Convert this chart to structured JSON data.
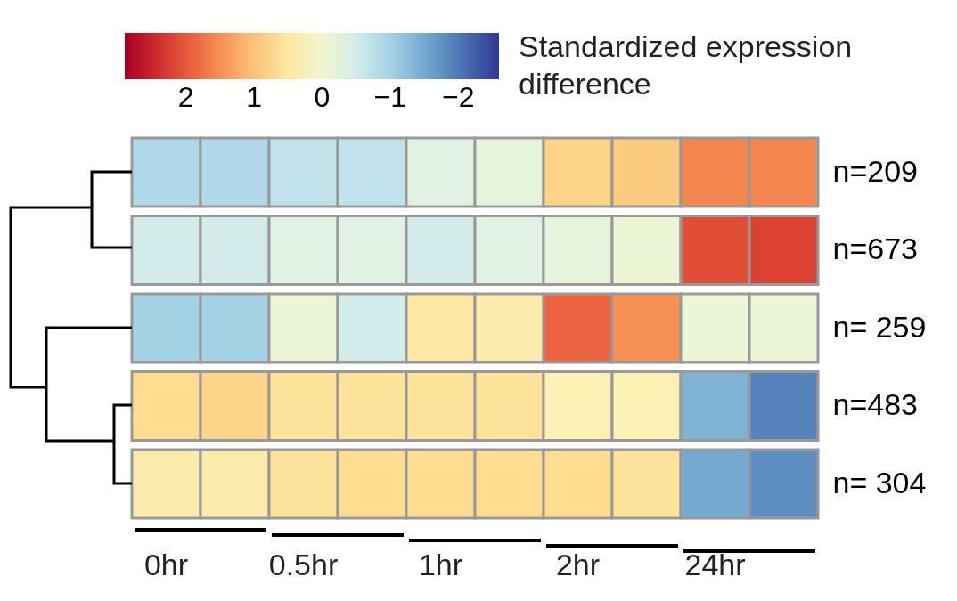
{
  "chart_data": {
    "type": "heatmap",
    "clabel": "Standardized expression difference",
    "categories": [
      "0hr",
      null,
      "0.5hr",
      null,
      "1hr",
      null,
      "2hr",
      null,
      "24hr",
      null
    ],
    "y_categories": [
      "n=209",
      "n=673",
      "n= 259",
      "n=483",
      "n= 304"
    ],
    "cells": [
      [
        -0.9,
        -0.9,
        -0.7,
        -0.7,
        -0.3,
        -0.2,
        0.8,
        0.9,
        1.6,
        1.6
      ],
      [
        -0.5,
        -0.5,
        -0.3,
        -0.3,
        -0.5,
        -0.3,
        -0.2,
        -0.1,
        2.1,
        2.2
      ],
      [
        -1.0,
        -1.0,
        -0.1,
        -0.5,
        0.5,
        0.4,
        1.9,
        1.5,
        -0.1,
        -0.1
      ],
      [
        0.7,
        0.8,
        0.6,
        0.6,
        0.6,
        0.6,
        0.3,
        0.3,
        -1.4,
        -1.9
      ],
      [
        0.4,
        0.4,
        0.6,
        0.7,
        0.7,
        0.7,
        0.7,
        0.6,
        -1.5,
        -1.8
      ]
    ],
    "clim": [
      2.9,
      -2.6
    ],
    "cticks": [
      2,
      1,
      0,
      {
        "value": -1,
        "label": "−1"
      },
      {
        "value": -2,
        "label": "−2"
      }
    ]
  }
}
